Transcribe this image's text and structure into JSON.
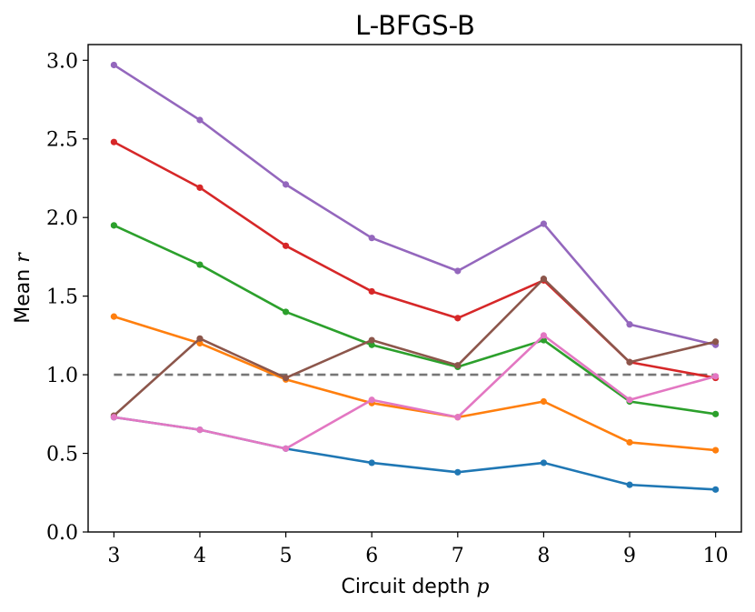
{
  "chart_data": {
    "type": "line",
    "title": "L-BFGS-B",
    "xlabel": "Circuit depth",
    "xlabel_var": "p",
    "ylabel": "Mean",
    "ylabel_var": "r",
    "x": [
      3,
      4,
      5,
      6,
      7,
      8,
      9,
      10
    ],
    "xlim": [
      2.7,
      10.3
    ],
    "ylim": [
      0.0,
      3.1
    ],
    "xticks": [
      "3",
      "4",
      "5",
      "6",
      "7",
      "8",
      "9",
      "10"
    ],
    "yticks": [
      "0.0",
      "0.5",
      "1.0",
      "1.5",
      "2.0",
      "2.5",
      "3.0"
    ],
    "ytick_values": [
      0.0,
      0.5,
      1.0,
      1.5,
      2.0,
      2.5,
      3.0
    ],
    "reference_line": {
      "y": 1.0,
      "x_range": [
        3,
        10
      ],
      "color": "#777777",
      "style": "dashed"
    },
    "series": [
      {
        "name": "series-blue",
        "color": "#1f77b4",
        "values": [
          0.73,
          0.65,
          0.53,
          0.44,
          0.38,
          0.44,
          0.3,
          0.27
        ]
      },
      {
        "name": "series-orange",
        "color": "#ff7f0e",
        "values": [
          1.37,
          1.2,
          0.97,
          0.82,
          0.73,
          0.83,
          0.57,
          0.52
        ]
      },
      {
        "name": "series-green",
        "color": "#2ca02c",
        "values": [
          1.95,
          1.7,
          1.4,
          1.19,
          1.05,
          1.22,
          0.83,
          0.75
        ]
      },
      {
        "name": "series-red",
        "color": "#d62728",
        "values": [
          2.48,
          2.19,
          1.82,
          1.53,
          1.36,
          1.6,
          1.08,
          0.98
        ]
      },
      {
        "name": "series-purple",
        "color": "#9467bd",
        "values": [
          2.97,
          2.62,
          2.21,
          1.87,
          1.66,
          1.96,
          1.32,
          1.19
        ]
      },
      {
        "name": "series-brown",
        "color": "#8c564b",
        "values": [
          0.74,
          1.23,
          0.98,
          1.22,
          1.06,
          1.61,
          1.08,
          1.21
        ]
      },
      {
        "name": "series-pink",
        "color": "#e377c2",
        "values": [
          0.73,
          0.65,
          0.53,
          0.84,
          0.73,
          1.25,
          0.84,
          0.99
        ]
      }
    ]
  }
}
